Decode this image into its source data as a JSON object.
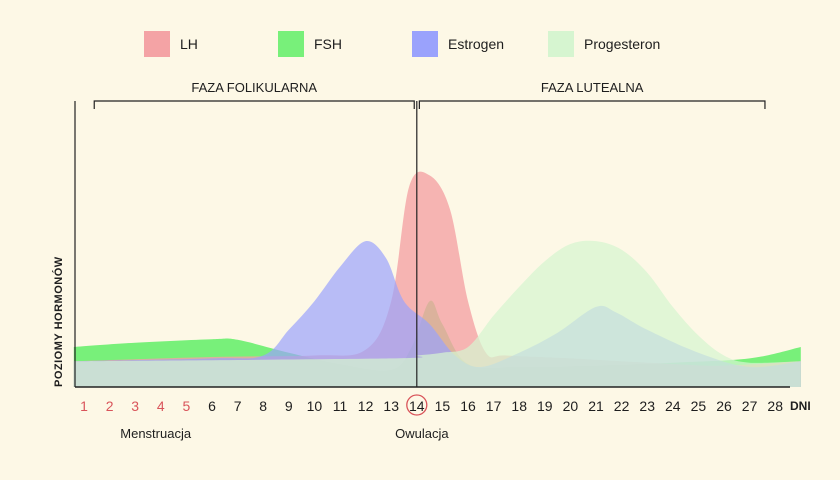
{
  "chart_data": {
    "type": "area",
    "xlabel": "DNI",
    "ylabel": "POZIOMY HORMONÓW",
    "x": [
      1,
      2,
      3,
      4,
      5,
      6,
      7,
      8,
      9,
      10,
      11,
      12,
      13,
      14,
      15,
      16,
      17,
      18,
      19,
      20,
      21,
      22,
      23,
      24,
      25,
      26,
      27,
      28
    ],
    "xlim": [
      0.6,
      29
    ],
    "ylim": [
      0,
      100
    ],
    "highlighted_ticks": [
      1,
      2,
      3,
      4,
      5
    ],
    "circled_tick": 14,
    "phases": [
      {
        "label": "FAZA FOLIKULARNA",
        "start": 1.4,
        "end": 13.9
      },
      {
        "label": "FAZA LUTEALNA",
        "start": 14.1,
        "end": 27.6
      }
    ],
    "divider_x": 14,
    "annotations": [
      {
        "text": "Menstruacja",
        "x": 3.8
      },
      {
        "text": "Owulacja",
        "x": 14.2
      }
    ],
    "legend_position": "top",
    "series": [
      {
        "name": "FSH",
        "color": "#78f07a",
        "points": [
          [
            0.6,
            14
          ],
          [
            3,
            15.5
          ],
          [
            6,
            16.7
          ],
          [
            7,
            16.5
          ],
          [
            9,
            12
          ],
          [
            11,
            8
          ],
          [
            13,
            6
          ],
          [
            13.8,
            14
          ],
          [
            14.5,
            30
          ],
          [
            15,
            22
          ],
          [
            16,
            8
          ],
          [
            18,
            7
          ],
          [
            21,
            7.5
          ],
          [
            24,
            8.5
          ],
          [
            27,
            10
          ],
          [
            29,
            14
          ]
        ]
      },
      {
        "name": "LH",
        "color": "#f4a3a5",
        "points": [
          [
            0.6,
            9
          ],
          [
            6,
            10.5
          ],
          [
            10,
            11
          ],
          [
            12,
            13
          ],
          [
            13,
            30
          ],
          [
            13.7,
            70
          ],
          [
            14.5,
            74
          ],
          [
            15.3,
            62
          ],
          [
            16,
            30
          ],
          [
            16.7,
            12
          ],
          [
            17.5,
            11
          ],
          [
            20,
            10
          ],
          [
            24,
            8
          ],
          [
            26,
            7.5
          ],
          [
            29,
            9
          ]
        ]
      },
      {
        "name": "Estrogen",
        "color": "#9aa2fc",
        "points": [
          [
            0.6,
            9
          ],
          [
            6,
            10
          ],
          [
            8,
            11
          ],
          [
            9,
            20
          ],
          [
            10,
            30
          ],
          [
            11,
            42
          ],
          [
            12,
            51
          ],
          [
            12.8,
            45
          ],
          [
            13.5,
            30
          ],
          [
            14.5,
            22
          ],
          [
            15.5,
            11
          ],
          [
            16.5,
            7
          ],
          [
            18,
            12
          ],
          [
            19.5,
            19
          ],
          [
            21,
            28
          ],
          [
            21.8,
            26
          ],
          [
            23,
            20
          ],
          [
            25,
            12
          ],
          [
            27,
            7
          ],
          [
            29,
            9
          ]
        ]
      },
      {
        "name": "Progesteron",
        "color": "#d6f5d0",
        "points": [
          [
            0.6,
            9
          ],
          [
            13,
            10
          ],
          [
            14,
            11
          ],
          [
            15,
            12
          ],
          [
            16,
            14
          ],
          [
            17,
            25
          ],
          [
            18,
            35
          ],
          [
            19,
            44
          ],
          [
            20,
            50
          ],
          [
            21,
            51
          ],
          [
            22,
            48
          ],
          [
            23,
            40
          ],
          [
            24,
            28
          ],
          [
            25,
            18
          ],
          [
            26,
            11
          ],
          [
            27,
            8.5
          ],
          [
            29,
            9
          ]
        ]
      }
    ]
  }
}
